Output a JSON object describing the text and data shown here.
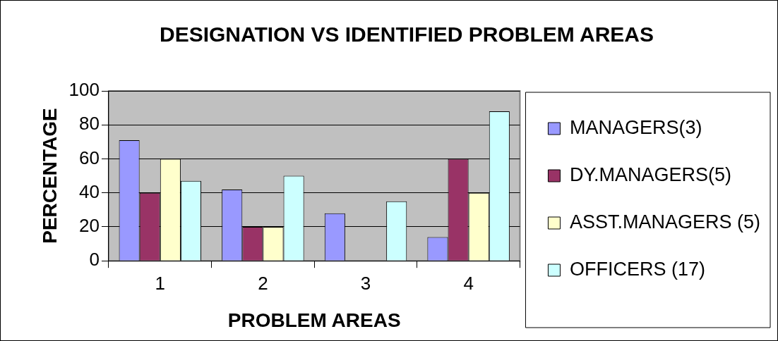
{
  "chart_data": {
    "type": "bar",
    "title": "DESIGNATION VS IDENTIFIED PROBLEM AREAS",
    "xlabel": "PROBLEM AREAS",
    "ylabel": "PERCENTAGE",
    "categories": [
      "1",
      "2",
      "3",
      "4"
    ],
    "series": [
      {
        "name": "MANAGERS(3)",
        "color": "#9999ff",
        "values": [
          71,
          42,
          28,
          14
        ]
      },
      {
        "name": "DY.MANAGERS(5)",
        "color": "#993366",
        "values": [
          40,
          20,
          0,
          60
        ]
      },
      {
        "name": "ASST.MANAGERS (5)",
        "color": "#ffffcc",
        "values": [
          60,
          20,
          0,
          40
        ]
      },
      {
        "name": "OFFICERS (17)",
        "color": "#ccffff",
        "values": [
          47,
          50,
          35,
          88
        ]
      }
    ],
    "ylim": [
      0,
      100
    ],
    "yticks": [
      0,
      20,
      40,
      60,
      80,
      100
    ],
    "grid": "y",
    "legend": "right"
  }
}
